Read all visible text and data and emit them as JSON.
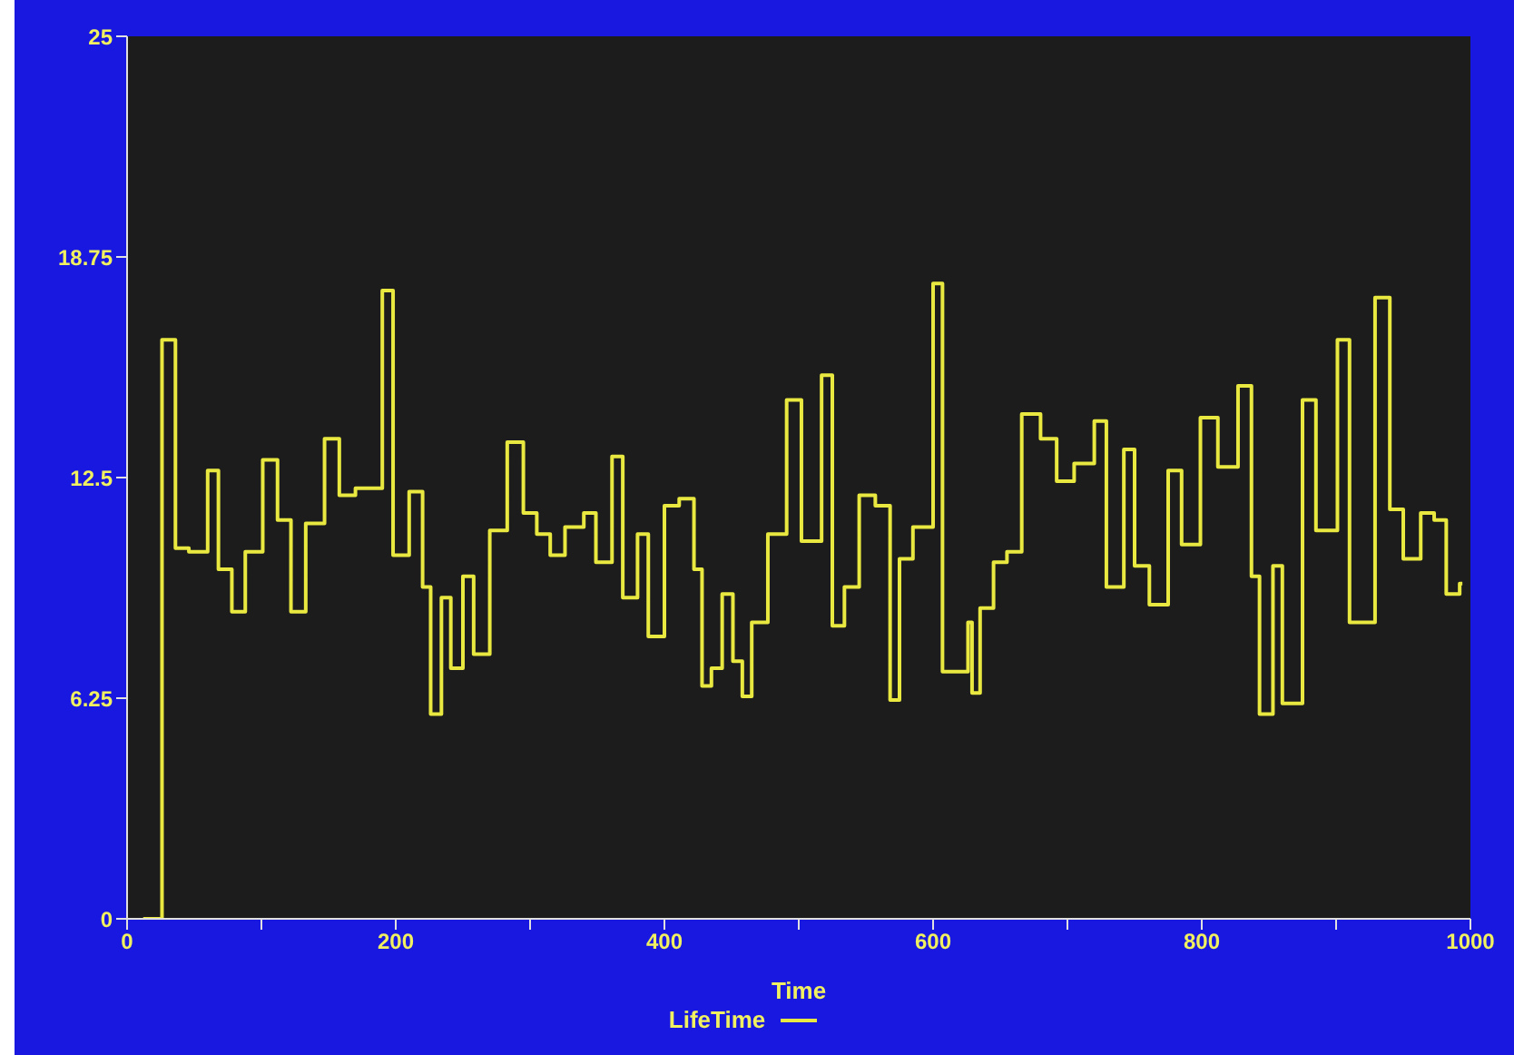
{
  "chart_data": {
    "type": "step",
    "xlabel": "Time",
    "x": [
      12,
      26,
      36,
      46,
      60,
      68,
      78,
      88,
      101,
      112,
      122,
      133,
      147,
      158,
      170,
      190,
      198,
      210,
      220,
      226,
      234,
      241,
      250,
      258,
      270,
      283,
      295,
      305,
      315,
      326,
      340,
      349,
      361,
      369,
      380,
      388,
      400,
      411,
      422,
      428,
      435,
      443,
      451,
      458,
      465,
      477,
      491,
      502,
      517,
      525,
      534,
      545,
      557,
      568,
      575,
      585,
      600,
      607,
      626,
      629,
      635,
      645,
      655,
      666,
      680,
      692,
      705,
      720,
      729,
      742,
      750,
      761,
      775,
      785,
      799,
      812,
      827,
      837,
      843,
      853,
      860,
      875,
      885,
      901,
      910,
      929,
      940,
      950,
      963,
      973,
      982,
      992,
      994
    ],
    "series": [
      {
        "name": "LifeTime",
        "color": "#e8e840",
        "values": [
          0,
          16.4,
          10.5,
          10.4,
          12.7,
          9.9,
          8.7,
          10.4,
          13,
          11.3,
          8.7,
          11.2,
          13.6,
          12,
          12.2,
          17.8,
          10.3,
          12.1,
          9.4,
          5.8,
          9.1,
          7.1,
          9.7,
          7.5,
          11,
          13.5,
          11.5,
          10.9,
          10.3,
          11.1,
          11.5,
          10.1,
          13.1,
          9.1,
          10.9,
          8,
          11.7,
          11.9,
          9.9,
          6.6,
          7.1,
          9.2,
          7.3,
          6.3,
          8.4,
          10.9,
          14.7,
          10.7,
          15.4,
          8.3,
          9.4,
          12,
          11.7,
          6.2,
          10.2,
          11.1,
          18,
          7,
          8.4,
          6.4,
          8.8,
          10.1,
          10.4,
          14.3,
          13.6,
          12.4,
          12.9,
          14.1,
          9.4,
          13.3,
          10,
          8.9,
          12.7,
          10.6,
          14.2,
          12.8,
          15.1,
          9.7,
          5.8,
          10,
          6.1,
          14.7,
          11,
          16.4,
          8.4,
          17.6,
          11.6,
          10.2,
          11.5,
          11.3,
          9.2,
          9.5,
          9.5
        ]
      }
    ],
    "xlim": [
      0,
      1000
    ],
    "xticks": [
      0,
      {
        "value": 100,
        "label": null
      },
      200,
      {
        "value": 300,
        "label": null
      },
      400,
      {
        "value": 500,
        "label": null
      },
      600,
      {
        "value": 700,
        "label": null
      },
      800,
      {
        "value": 900,
        "label": null
      },
      1000
    ],
    "ylim": [
      0,
      25
    ],
    "yticks": [
      0,
      6.25,
      12.5,
      18.75,
      25
    ],
    "legend": "bottom",
    "marker": "none",
    "line_style": "solid"
  }
}
